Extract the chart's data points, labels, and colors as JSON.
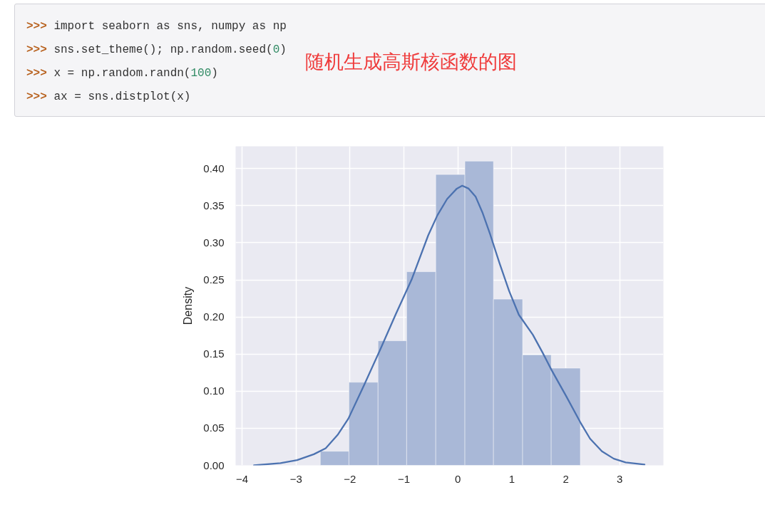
{
  "chart_data": {
    "type": "histogram",
    "title": "随机生成高斯核函数的图",
    "ylabel": "Density",
    "annotations": [
      ">>> import seaborn as sns, numpy as np",
      ">>> sns.set_theme(); np.random.seed(0)",
      ">>> x = np.random.randn(100)",
      ">>> ax = sns.distplot(x)"
    ],
    "series": [
      {
        "color": "#a9b8d7",
        "bins": [
          -2.55,
          -2.02,
          -1.48,
          -0.95,
          -0.41,
          0.13,
          0.66,
          1.2,
          1.73,
          2.27
        ],
        "values": [
          0.019,
          0.112,
          0.168,
          0.261,
          0.392,
          0.41,
          0.224,
          0.149,
          0.131
        ]
      },
      {
        "type": "line",
        "color": "#4c72b0",
        "x": [
          -3.78,
          -3.29,
          -2.98,
          -2.67,
          -2.45,
          -2.23,
          -2.03,
          -1.74,
          -1.44,
          -1.15,
          -0.86,
          -0.55,
          -0.38,
          -0.2,
          -0.02,
          0.08,
          0.2,
          0.33,
          0.46,
          0.6,
          0.77,
          0.95,
          1.13,
          1.39,
          1.57,
          1.74,
          2.01,
          2.27,
          2.45,
          2.67,
          2.89,
          3.11,
          3.46
        ],
        "values": [
          0.0,
          0.003,
          0.007,
          0.015,
          0.023,
          0.041,
          0.063,
          0.108,
          0.156,
          0.204,
          0.25,
          0.31,
          0.337,
          0.359,
          0.373,
          0.377,
          0.373,
          0.362,
          0.34,
          0.311,
          0.273,
          0.235,
          0.203,
          0.176,
          0.152,
          0.128,
          0.093,
          0.058,
          0.036,
          0.019,
          0.009,
          0.004,
          0.001
        ]
      }
    ],
    "xlim": [
      -4.12,
      3.81
    ],
    "ylim": [
      0,
      0.43
    ],
    "xticks": [
      {
        "value": -4,
        "label": "−4"
      },
      {
        "value": -3,
        "label": "−3"
      },
      {
        "value": -2,
        "label": "−2"
      },
      {
        "value": -1,
        "label": "−1"
      },
      0,
      1,
      2,
      3
    ],
    "yticks": [
      {
        "value": 0,
        "label": "0.00"
      },
      {
        "value": 0.05,
        "label": "0.05"
      },
      {
        "value": 0.1,
        "label": "0.10"
      },
      {
        "value": 0.15,
        "label": "0.15"
      },
      {
        "value": 0.2,
        "label": "0.20"
      },
      {
        "value": 0.25,
        "label": "0.25"
      },
      {
        "value": 0.3,
        "label": "0.30"
      },
      {
        "value": 0.35,
        "label": "0.35"
      },
      {
        "value": 0.4,
        "label": "0.40"
      }
    ],
    "grid": true
  }
}
